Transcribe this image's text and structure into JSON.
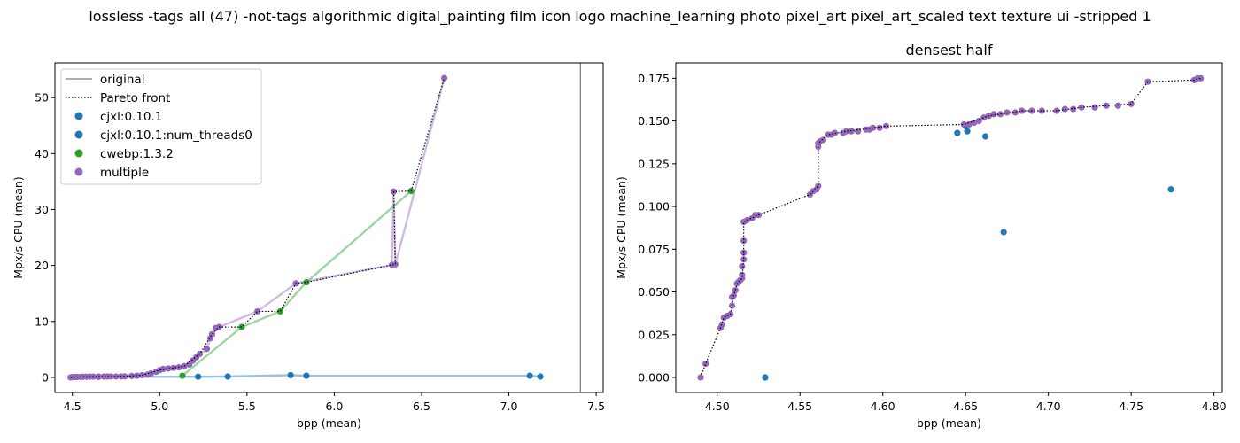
{
  "suptitle": "lossless -tags all (47) -not-tags algorithmic digital_painting film icon logo machine_learning photo pixel_art pixel_art_scaled text texture ui -stripped 1",
  "colors": {
    "cjxl": "#1f77b4",
    "cjxl_nt": "#1f77b4",
    "cwebp": "#2ca02c",
    "multiple": "#9467bd",
    "original": "#808080",
    "pareto": "#000000"
  },
  "legend": {
    "original": "original",
    "pareto": "Pareto front",
    "cjxl": "cjxl:0.10.1",
    "cjxl_nt": "cjxl:0.10.1:num_threads0",
    "cwebp": "cwebp:1.3.2",
    "multiple": "multiple"
  },
  "chart_data": [
    {
      "type": "scatter",
      "title": "",
      "xlabel": "bpp (mean)",
      "ylabel": "Mpx/s CPU (mean)",
      "xlim": [
        4.4,
        7.54
      ],
      "ylim": [
        -2.7,
        56.2
      ],
      "xticks": [
        4.5,
        5.0,
        5.5,
        6.0,
        6.5,
        7.0,
        7.5
      ],
      "xticklabels": [
        "4.5",
        "5.0",
        "5.5",
        "6.0",
        "6.5",
        "7.0",
        "7.5"
      ],
      "yticks": [
        0,
        10,
        20,
        30,
        40,
        50
      ],
      "yticklabels": [
        "0",
        "10",
        "20",
        "30",
        "40",
        "50"
      ],
      "original_x": 7.41,
      "legend_position": "upper-left",
      "series": [
        {
          "key": "cjxl",
          "line": true,
          "points": [
            [
              4.65,
              0.1
            ],
            [
              5.22,
              0.12
            ],
            [
              5.39,
              0.15
            ],
            [
              5.75,
              0.4
            ],
            [
              5.84,
              0.3
            ],
            [
              7.12,
              0.3
            ],
            [
              7.18,
              0.15
            ]
          ]
        },
        {
          "key": "cjxl_nt",
          "line": false,
          "points": []
        },
        {
          "key": "cwebp",
          "line": true,
          "points": [
            [
              5.13,
              0.3
            ],
            [
              5.47,
              9.0
            ],
            [
              5.69,
              11.8
            ],
            [
              5.84,
              17.0
            ],
            [
              6.44,
              33.3
            ]
          ]
        },
        {
          "key": "multiple",
          "line": true,
          "points": [
            [
              4.49,
              0.0
            ],
            [
              4.5,
              0.05
            ],
            [
              4.51,
              0.06
            ],
            [
              4.52,
              0.07
            ],
            [
              4.53,
              0.08
            ],
            [
              4.55,
              0.09
            ],
            [
              4.56,
              0.11
            ],
            [
              4.58,
              0.12
            ],
            [
              4.6,
              0.13
            ],
            [
              4.62,
              0.14
            ],
            [
              4.65,
              0.14
            ],
            [
              4.68,
              0.15
            ],
            [
              4.7,
              0.15
            ],
            [
              4.72,
              0.16
            ],
            [
              4.75,
              0.16
            ],
            [
              4.78,
              0.17
            ],
            [
              4.8,
              0.17
            ],
            [
              4.84,
              0.25
            ],
            [
              4.87,
              0.3
            ],
            [
              4.9,
              0.4
            ],
            [
              4.93,
              0.5
            ],
            [
              4.95,
              0.7
            ],
            [
              4.98,
              1.0
            ],
            [
              5.0,
              1.3
            ],
            [
              5.02,
              1.5
            ],
            [
              5.05,
              1.6
            ],
            [
              5.08,
              1.7
            ],
            [
              5.11,
              1.8
            ],
            [
              5.14,
              2.0
            ],
            [
              5.17,
              2.3
            ],
            [
              5.19,
              3.0
            ],
            [
              5.21,
              3.6
            ],
            [
              5.23,
              4.2
            ],
            [
              5.27,
              5.1
            ],
            [
              5.29,
              7.0
            ],
            [
              5.3,
              7.7
            ],
            [
              5.32,
              8.8
            ],
            [
              5.34,
              9.0
            ],
            [
              5.56,
              11.8
            ],
            [
              5.78,
              16.8
            ],
            [
              6.33,
              20.1
            ],
            [
              6.35,
              20.2
            ],
            [
              6.34,
              33.2
            ],
            [
              6.63,
              53.5
            ]
          ]
        }
      ],
      "pareto_front": [
        [
          4.49,
          0.0
        ],
        [
          4.56,
          0.11
        ],
        [
          4.68,
          0.15
        ],
        [
          4.8,
          0.17
        ],
        [
          4.9,
          0.4
        ],
        [
          5.0,
          1.3
        ],
        [
          5.14,
          2.0
        ],
        [
          5.23,
          4.2
        ],
        [
          5.3,
          7.7
        ],
        [
          5.34,
          9.0
        ],
        [
          5.47,
          9.0
        ],
        [
          5.56,
          11.8
        ],
        [
          5.69,
          11.8
        ],
        [
          5.78,
          16.8
        ],
        [
          5.84,
          17.0
        ],
        [
          6.33,
          20.1
        ],
        [
          6.35,
          20.2
        ],
        [
          6.34,
          33.2
        ],
        [
          6.44,
          33.3
        ],
        [
          6.63,
          53.5
        ]
      ]
    },
    {
      "type": "scatter",
      "title": "densest half",
      "xlabel": "bpp (mean)",
      "ylabel": "Mpx/s CPU (mean)",
      "xlim": [
        4.475,
        4.805
      ],
      "ylim": [
        -0.0088,
        0.184
      ],
      "xticks": [
        4.5,
        4.55,
        4.6,
        4.65,
        4.7,
        4.75,
        4.8
      ],
      "xticklabels": [
        "4.50",
        "4.55",
        "4.60",
        "4.65",
        "4.70",
        "4.75",
        "4.80"
      ],
      "yticks": [
        0.0,
        0.025,
        0.05,
        0.075,
        0.1,
        0.125,
        0.15,
        0.175
      ],
      "yticklabels": [
        "0.000",
        "0.025",
        "0.050",
        "0.075",
        "0.100",
        "0.125",
        "0.150",
        "0.175"
      ],
      "series": [
        {
          "key": "cjxl",
          "line": false,
          "points": [
            [
              4.529,
              0.0
            ],
            [
              4.645,
              0.143
            ],
            [
              4.65,
              0.147
            ],
            [
              4.651,
              0.144
            ],
            [
              4.662,
              0.141
            ],
            [
              4.673,
              0.085
            ],
            [
              4.774,
              0.11
            ]
          ]
        },
        {
          "key": "multiple",
          "line": false,
          "points": [
            [
              4.49,
              0.0
            ],
            [
              4.493,
              0.008
            ],
            [
              4.502,
              0.029
            ],
            [
              4.503,
              0.031
            ],
            [
              4.504,
              0.035
            ],
            [
              4.506,
              0.036
            ],
            [
              4.508,
              0.037
            ],
            [
              4.509,
              0.042
            ],
            [
              4.509,
              0.047
            ],
            [
              4.51,
              0.048
            ],
            [
              4.511,
              0.051
            ],
            [
              4.512,
              0.055
            ],
            [
              4.513,
              0.056
            ],
            [
              4.514,
              0.057
            ],
            [
              4.515,
              0.058
            ],
            [
              4.515,
              0.06
            ],
            [
              4.515,
              0.065
            ],
            [
              4.516,
              0.069
            ],
            [
              4.516,
              0.073
            ],
            [
              4.516,
              0.08
            ],
            [
              4.516,
              0.091
            ],
            [
              4.518,
              0.092
            ],
            [
              4.521,
              0.093
            ],
            [
              4.523,
              0.095
            ],
            [
              4.525,
              0.095
            ],
            [
              4.556,
              0.107
            ],
            [
              4.558,
              0.109
            ],
            [
              4.56,
              0.11
            ],
            [
              4.561,
              0.112
            ],
            [
              4.561,
              0.135
            ],
            [
              4.561,
              0.137
            ],
            [
              4.562,
              0.138
            ],
            [
              4.564,
              0.139
            ],
            [
              4.567,
              0.142
            ],
            [
              4.569,
              0.142
            ],
            [
              4.571,
              0.143
            ],
            [
              4.576,
              0.143
            ],
            [
              4.578,
              0.144
            ],
            [
              4.581,
              0.144
            ],
            [
              4.585,
              0.144
            ],
            [
              4.59,
              0.145
            ],
            [
              4.592,
              0.145
            ],
            [
              4.594,
              0.146
            ],
            [
              4.598,
              0.146
            ],
            [
              4.602,
              0.147
            ],
            [
              4.649,
              0.148
            ],
            [
              4.652,
              0.148
            ],
            [
              4.655,
              0.149
            ],
            [
              4.658,
              0.15
            ],
            [
              4.661,
              0.152
            ],
            [
              4.664,
              0.153
            ],
            [
              4.667,
              0.154
            ],
            [
              4.671,
              0.154
            ],
            [
              4.675,
              0.155
            ],
            [
              4.68,
              0.155
            ],
            [
              4.684,
              0.156
            ],
            [
              4.69,
              0.156
            ],
            [
              4.696,
              0.156
            ],
            [
              4.705,
              0.156
            ],
            [
              4.71,
              0.157
            ],
            [
              4.715,
              0.157
            ],
            [
              4.72,
              0.158
            ],
            [
              4.728,
              0.158
            ],
            [
              4.735,
              0.159
            ],
            [
              4.742,
              0.159
            ],
            [
              4.75,
              0.16
            ],
            [
              4.76,
              0.173
            ],
            [
              4.788,
              0.174
            ],
            [
              4.79,
              0.175
            ],
            [
              4.792,
              0.175
            ]
          ]
        }
      ],
      "pareto_front": [
        [
          4.49,
          0.0
        ],
        [
          4.493,
          0.008
        ],
        [
          4.502,
          0.029
        ],
        [
          4.504,
          0.035
        ],
        [
          4.508,
          0.037
        ],
        [
          4.51,
          0.048
        ],
        [
          4.512,
          0.055
        ],
        [
          4.515,
          0.058
        ],
        [
          4.516,
          0.069
        ],
        [
          4.516,
          0.091
        ],
        [
          4.518,
          0.092
        ],
        [
          4.525,
          0.095
        ],
        [
          4.556,
          0.107
        ],
        [
          4.561,
          0.112
        ],
        [
          4.561,
          0.137
        ],
        [
          4.567,
          0.142
        ],
        [
          4.578,
          0.144
        ],
        [
          4.602,
          0.147
        ],
        [
          4.649,
          0.148
        ],
        [
          4.664,
          0.153
        ],
        [
          4.684,
          0.156
        ],
        [
          4.705,
          0.156
        ],
        [
          4.72,
          0.158
        ],
        [
          4.75,
          0.16
        ],
        [
          4.76,
          0.173
        ],
        [
          4.788,
          0.174
        ],
        [
          4.792,
          0.175
        ]
      ]
    }
  ]
}
